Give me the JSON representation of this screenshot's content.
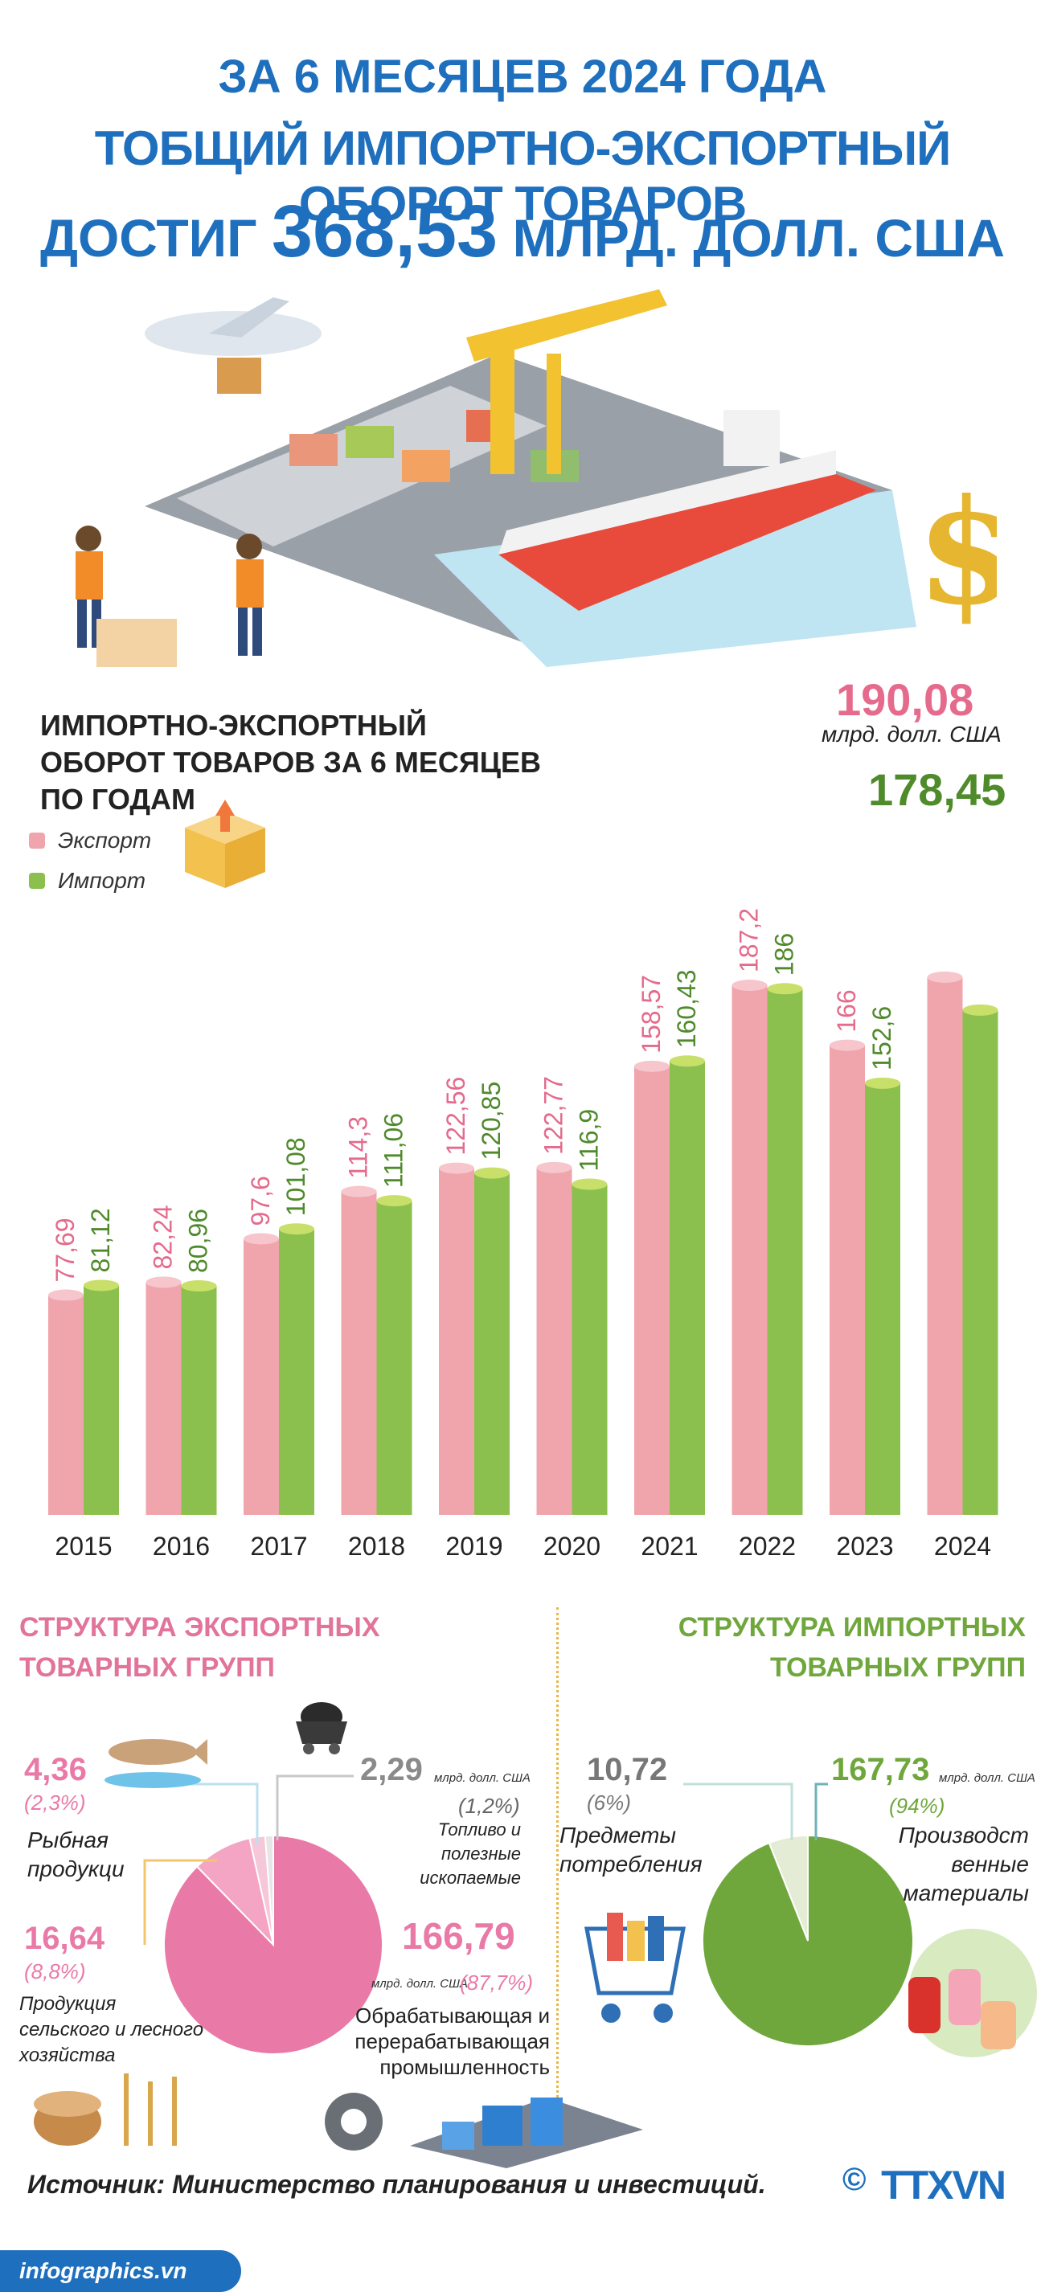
{
  "header": {
    "line1": "ЗА 6 МЕСЯЦЕВ 2024 ГОДА",
    "line2": "ТОБЩИЙ ИМПОРТНО-ЭКСПОРТНЫЙ ОБОРОТ ТОВАРОВ",
    "line3_prefix": "ДОСТИГ",
    "line3_value": "368,53",
    "line3_suffix": "МЛРД. ДОЛЛ. США"
  },
  "chart_data": {
    "type": "bar",
    "title": "ИМПОРТНО-ЭКСПОРТНЫЙ ОБОРОТ ТОВАРОВ ЗА 6 МЕСЯЦЕВ ПО ГОДАМ",
    "categories": [
      "2015",
      "2016",
      "2017",
      "2018",
      "2019",
      "2020",
      "2021",
      "2022",
      "2023",
      "2024"
    ],
    "series": [
      {
        "name": "Экспорт",
        "color": "#f0a4ac",
        "values": [
          77.69,
          82.24,
          97.6,
          114.3,
          122.56,
          122.77,
          158.57,
          187.2,
          166,
          190.08
        ],
        "labels": [
          "77,69",
          "82,24",
          "97,6",
          "114,3",
          "122,56",
          "122,77",
          "158,57",
          "187,2",
          "166",
          "190,08"
        ]
      },
      {
        "name": "Импорт",
        "color": "#8cc04e",
        "values": [
          81.12,
          80.96,
          101.08,
          111.06,
          120.85,
          116.9,
          160.43,
          186,
          152.6,
          178.45
        ],
        "labels": [
          "81,12",
          "80,96",
          "101,08",
          "111,06",
          "120,85",
          "116,9",
          "160,43",
          "186",
          "152,6",
          "178,45"
        ]
      }
    ],
    "highlight_unit": "млрд. долл. США",
    "legend_placement": "top-left",
    "ylim": [
      0,
      200
    ],
    "grid": false
  },
  "export_structure": {
    "heading_line1": "СТРУКТУРА ЭКСПОРТНЫХ",
    "heading_line2": "ТОВАРНЫХ ГРУПП",
    "items": [
      {
        "value": "4,36",
        "pct": "(2,3%)",
        "label1": "Рыбная",
        "label2": "продукци",
        "share": 2.3,
        "color": "#f6c7d8"
      },
      {
        "value": "2,29",
        "unit": "млрд. долл. США",
        "pct": "(1,2%)",
        "label1": "Топливо и полезные",
        "label2": "ископаемые",
        "share": 1.2,
        "color": "#e6e6e6"
      },
      {
        "value": "16,64",
        "pct": "(8,8%)",
        "label1": "Продукция",
        "label2": "сельского и лесного",
        "label3": "хозяйства",
        "share": 8.8,
        "color": "#f3a5c3"
      },
      {
        "value": "166,79",
        "unit": "млрд. долл. США",
        "pct": "(87,7%)",
        "label1": "Обрабатывающая и",
        "label2": "перерабатывающая",
        "label3": "промышленность",
        "share": 87.7,
        "color": "#e97aa8"
      }
    ]
  },
  "import_structure": {
    "heading_line1": "СТРУКТУРА ИМПОРТНЫХ",
    "heading_line2": "ТОВАРНЫХ ГРУПП",
    "items": [
      {
        "value": "10,72",
        "pct": "(6%)",
        "label1": "Предметы",
        "label2": "потребления",
        "share": 6,
        "color": "#e4ecd6"
      },
      {
        "value": "167,73",
        "unit": "млрд. долл. США",
        "pct": "(94%)",
        "label1": "Производст",
        "label2": "венные",
        "label3": "материалы",
        "share": 94,
        "color": "#6fa73c"
      }
    ]
  },
  "footer": {
    "source": "Источник: Министерство планирования и инвестиций.",
    "site": "infographics.vn",
    "copyright": "©",
    "agency": "TTXVN"
  }
}
